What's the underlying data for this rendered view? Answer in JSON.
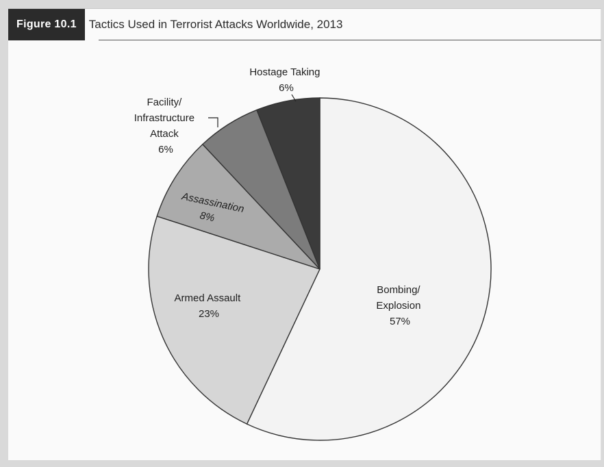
{
  "figure": {
    "badge": "Figure 10.1",
    "title": "Tactics Used in Terrorist Attacks Worldwide, 2013"
  },
  "chart_data": {
    "type": "pie",
    "title": "Tactics Used in Terrorist Attacks Worldwide, 2013",
    "start_angle_deg": 0,
    "direction": "clockwise",
    "slices": [
      {
        "label_lines": [
          "Bombing/",
          "Explosion"
        ],
        "value": 57,
        "value_label": "57%",
        "color": "#f3f3f3"
      },
      {
        "label_lines": [
          "Armed Assault"
        ],
        "value": 23,
        "value_label": "23%",
        "color": "#d6d6d6"
      },
      {
        "label_lines": [
          "Assassination"
        ],
        "value": 8,
        "value_label": "8%",
        "color": "#ababab"
      },
      {
        "label_lines": [
          "Facility/",
          "Infrastructure",
          "Attack"
        ],
        "value": 6,
        "value_label": "6%",
        "color": "#7c7c7c"
      },
      {
        "label_lines": [
          "Hostage Taking"
        ],
        "value": 6,
        "value_label": "6%",
        "color": "#3b3b3b"
      }
    ]
  }
}
